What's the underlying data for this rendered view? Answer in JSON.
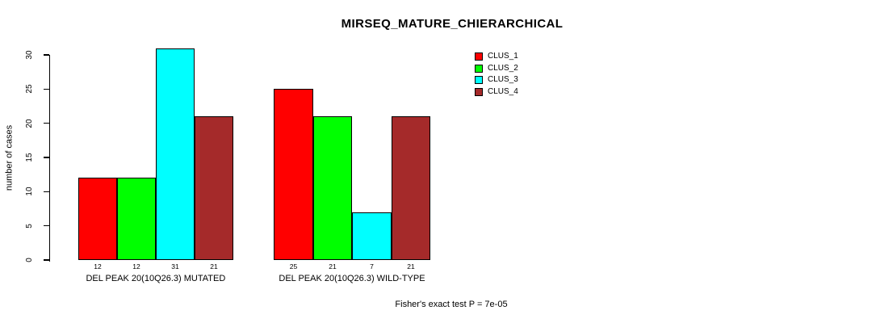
{
  "chart_data": {
    "type": "bar",
    "title": "MIRSEQ_MATURE_CHIERARCHICAL",
    "xlabel": "",
    "ylabel": "number of cases",
    "ylim": [
      0,
      30
    ],
    "yticks": [
      0,
      5,
      10,
      15,
      20,
      25,
      30
    ],
    "grid": false,
    "legend_position": "top-right",
    "categories": [
      "DEL PEAK 20(10Q26.3) MUTATED",
      "DEL PEAK 20(10Q26.3) WILD-TYPE"
    ],
    "series": [
      {
        "name": "CLUS_1",
        "color": "#ff0000",
        "values": [
          12,
          25
        ]
      },
      {
        "name": "CLUS_2",
        "color": "#00ff00",
        "values": [
          12,
          21
        ]
      },
      {
        "name": "CLUS_3",
        "color": "#00ffff",
        "values": [
          31,
          7
        ]
      },
      {
        "name": "CLUS_4",
        "color": "#a52a2a",
        "values": [
          21,
          21
        ]
      }
    ],
    "bar_value_labels": [
      [
        12,
        12,
        31,
        21
      ],
      [
        25,
        21,
        7,
        21
      ]
    ],
    "annotation": "Fisher's exact test P = 7e-05",
    "colors": {
      "axis": "#000000",
      "bar_border": "#000000",
      "text": "#000000",
      "background": "#ffffff"
    }
  }
}
